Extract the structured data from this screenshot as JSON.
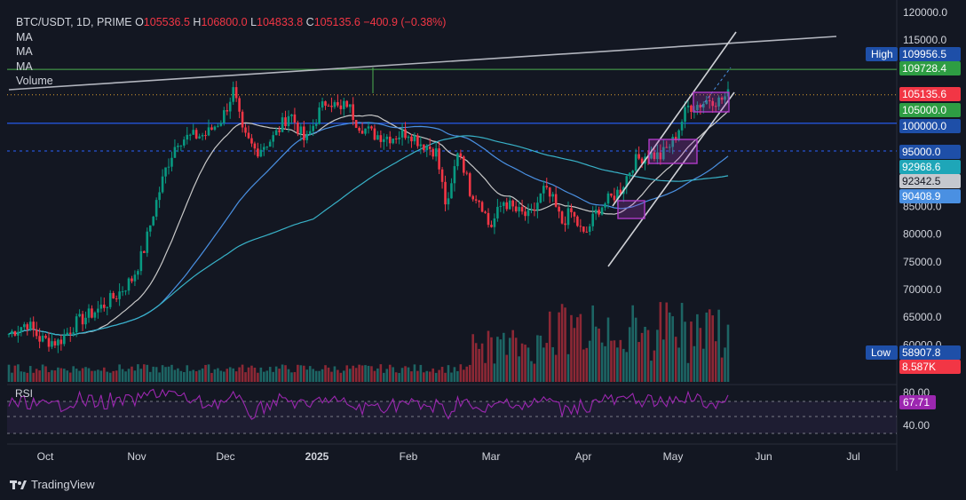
{
  "header": {
    "symbol": "BTC/USDT, 1D, PRIME",
    "o_label": "O",
    "o_value": "105536.5",
    "h_label": "H",
    "h_value": "106800.0",
    "l_label": "L",
    "l_value": "104833.8",
    "c_label": "C",
    "c_value": "105135.6",
    "change": "−400.9 (−0.38%)",
    "ma_lines": [
      "MA",
      "MA",
      "MA"
    ],
    "volume_label": "Volume"
  },
  "rsi_label": "RSI",
  "brand": "TradingView",
  "colors": {
    "background": "#131722",
    "up": "#26a69a",
    "up_bright": "#089981",
    "down": "#f23645",
    "ma_fast": "#9b9b9b",
    "ma_mid": "#4a90e2",
    "ma_slow": "#38b2c8",
    "rsi": "#9c27b0",
    "box": "#b03bc8",
    "green_level": "#4caf50",
    "blue_level": "#2962ff"
  },
  "chart_data": {
    "type": "candlestick",
    "x_axis": {
      "labels": [
        "Oct",
        "Nov",
        "Dec",
        "2025",
        "Feb",
        "Mar",
        "Apr",
        "May",
        "Jun",
        "Jul"
      ]
    },
    "y_axis": {
      "ticks": [
        120000,
        115000,
        95000,
        85000,
        80000,
        75000,
        70000,
        65000,
        60000
      ],
      "tick_labels": [
        "120000.0",
        "115000.0",
        "95000.0",
        "85000.0",
        "80000.0",
        "75000.0",
        "70000.0",
        "65000.0",
        "60000.0"
      ],
      "range": [
        57000,
        121000
      ]
    },
    "price_tags": [
      {
        "label": "High",
        "value": "109956.5",
        "kind": "high"
      },
      {
        "value": "109728.4",
        "kind": "green"
      },
      {
        "value": "105135.6",
        "kind": "red"
      },
      {
        "value": "105000.0",
        "kind": "green"
      },
      {
        "value": "100000.0",
        "kind": "blue"
      },
      {
        "value": "95000.0",
        "kind": "blue"
      },
      {
        "value": "92968.6",
        "kind": "teal"
      },
      {
        "value": "92342.5",
        "kind": "gray"
      },
      {
        "value": "90408.9",
        "kind": "lightblue"
      },
      {
        "label": "Low",
        "value": "58907.8",
        "kind": "low"
      },
      {
        "value": "8.587K",
        "kind": "red"
      }
    ],
    "levels": [
      {
        "value": 109728.4,
        "style": "solid-green"
      },
      {
        "value": 105135.6,
        "style": "dotted-red"
      },
      {
        "value": 100000,
        "style": "solid-blue"
      },
      {
        "value": 95000,
        "style": "dashed-blue"
      }
    ],
    "rsi": {
      "ticks": [
        "80.00",
        "40.00"
      ],
      "current": "67.71",
      "band": [
        70,
        30
      ]
    }
  }
}
